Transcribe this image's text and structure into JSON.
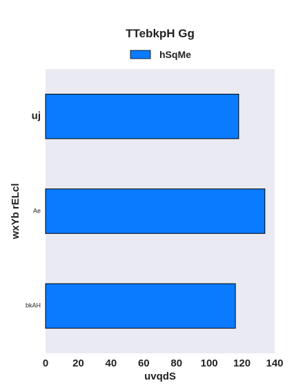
{
  "chart_data": {
    "type": "bar",
    "orientation": "horizontal",
    "title": "TTebkpH Gg",
    "xlabel": "uvqdS",
    "ylabel": "wxYb rELcl",
    "categories": [
      "uj",
      "Ae",
      "bkAH"
    ],
    "series": [
      {
        "name": "hSqMe",
        "values": [
          118,
          134,
          116
        ],
        "color": "#0a7bff"
      }
    ],
    "xlim": [
      0,
      140
    ],
    "xticks": [
      0,
      20,
      40,
      60,
      80,
      100,
      120,
      140
    ],
    "grid": false,
    "legend": "top-center",
    "background_color": "#eaeaf2",
    "bar_edge_color": "#000000"
  }
}
